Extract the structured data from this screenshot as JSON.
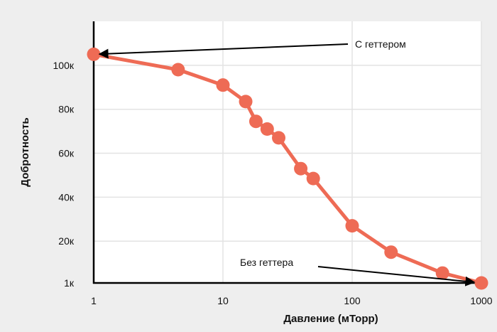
{
  "chart_data": {
    "type": "line",
    "title": "",
    "xlabel": "Давление (мТорр)",
    "ylabel": "Добротность",
    "x_scale": "log",
    "xlim": [
      1,
      1000
    ],
    "ylim": [
      1,
      120
    ],
    "x_ticks": [
      {
        "value": 1,
        "label": "1"
      },
      {
        "value": 10,
        "label": "10"
      },
      {
        "value": 100,
        "label": "100"
      },
      {
        "value": 1000,
        "label": "1000"
      }
    ],
    "y_ticks": [
      {
        "value": 1,
        "label": "1к"
      },
      {
        "value": 20,
        "label": "20к"
      },
      {
        "value": 40,
        "label": "40к"
      },
      {
        "value": 60,
        "label": "60к"
      },
      {
        "value": 80,
        "label": "80к"
      },
      {
        "value": 100,
        "label": "100к"
      }
    ],
    "grid": true,
    "series": [
      {
        "color": "#ee6b55",
        "points": [
          [
            1,
            105
          ],
          [
            4.5,
            98
          ],
          [
            10,
            91
          ],
          [
            15,
            83.5
          ],
          [
            18,
            74.5
          ],
          [
            22,
            71
          ],
          [
            27,
            67
          ],
          [
            40,
            53
          ],
          [
            50,
            48.5
          ],
          [
            100,
            27
          ],
          [
            200,
            15
          ],
          [
            500,
            5.5
          ],
          [
            1000,
            1
          ]
        ]
      }
    ],
    "annotations": [
      {
        "text": "С геттером",
        "target": [
          1,
          105
        ]
      },
      {
        "text": "Без геттера",
        "target": [
          1000,
          1
        ]
      }
    ]
  }
}
